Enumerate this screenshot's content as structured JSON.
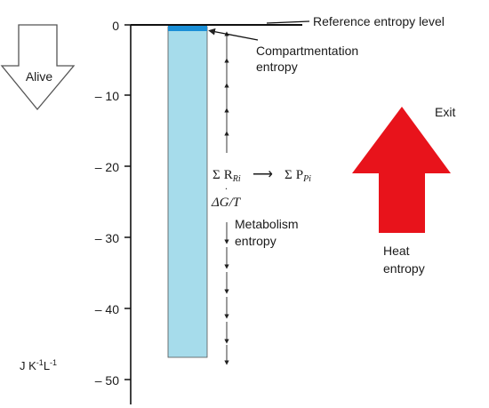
{
  "labels": {
    "reference": "Reference entropy level",
    "compartmentation_line1": "Compartmentation",
    "compartmentation_line2": "entropy",
    "alive": "Alive",
    "exit": "Exit",
    "heat_line1": "Heat",
    "heat_line2": "entropy",
    "metabolism_line1": "Metabolism",
    "metabolism_line2": "entropy",
    "unit_j": "J K",
    "unit_exp1": "-1",
    "unit_l": "L",
    "unit_exp2": "-1"
  },
  "reaction": {
    "sigma": "Σ",
    "reactant": "R",
    "reactant_sub": "Ri",
    "arrow": "⟶",
    "product": "P",
    "product_sub": "Pi",
    "dot": ".",
    "free_energy": "ΔG/T"
  },
  "axis": {
    "ticks": [
      "0",
      "– 10",
      "– 20",
      "– 30",
      "– 40",
      "– 50"
    ]
  },
  "colors": {
    "bar_fill": "#a6dceb",
    "compartment_fill": "#1a8fd6",
    "heat_arrow": "#e8131b",
    "alive_arrow_stroke": "#555555"
  },
  "icons": {
    "alive_arrow": "down-arrow-outline",
    "heat_arrow": "up-arrow-red"
  }
}
